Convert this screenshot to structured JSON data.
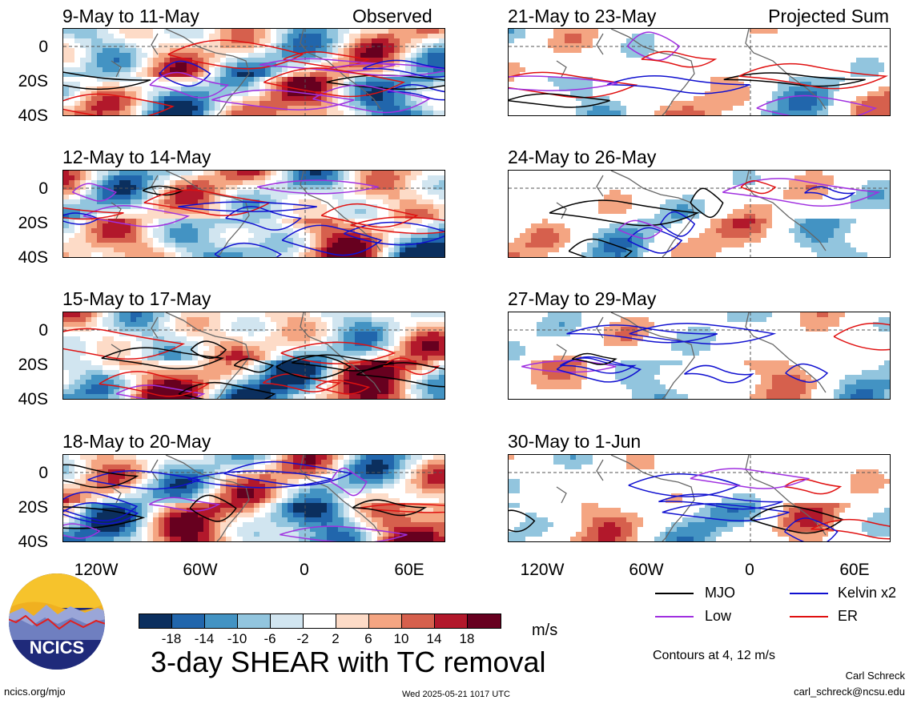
{
  "header": {
    "observed_label": "Observed",
    "projected_label": "Projected Sum"
  },
  "panels_left": [
    {
      "title": "9-May to 11-May"
    },
    {
      "title": "12-May to 14-May"
    },
    {
      "title": "15-May to 17-May"
    },
    {
      "title": "18-May to 20-May"
    }
  ],
  "panels_right": [
    {
      "title": "21-May to 23-May"
    },
    {
      "title": "24-May to 26-May"
    },
    {
      "title": "27-May to 29-May"
    },
    {
      "title": "30-May to 1-Jun"
    }
  ],
  "y_axis_labels": [
    "0",
    "20S",
    "40S"
  ],
  "x_axis_labels": [
    "120W",
    "60W",
    "0",
    "60E"
  ],
  "legend": {
    "mjo": "MJO",
    "kelvin": "Kelvin x2",
    "low": "Low",
    "er": "ER",
    "colors": {
      "mjo": "#000000",
      "kelvin": "#1010d0",
      "low": "#a030e0",
      "er": "#e01010"
    }
  },
  "colorbar": {
    "ticks": [
      "-18",
      "-14",
      "-10",
      "-6",
      "-2",
      "2",
      "6",
      "10",
      "14",
      "18"
    ],
    "colors": [
      "#0b2f5e",
      "#2166ac",
      "#4393c3",
      "#92c5de",
      "#d1e5f0",
      "#ffffff",
      "#fddbc7",
      "#f4a582",
      "#d6604d",
      "#b2182b",
      "#67001f"
    ],
    "units": "m/s"
  },
  "main_title": "3-day SHEAR with TC removal",
  "contours_note": "Contours at 4, 12 m/s",
  "author": "Carl Schreck",
  "email": "carl_schreck@ncsu.edu",
  "site": "ncics.org/mjo",
  "timestamp": "Wed 2025-05-21 1017 UTC",
  "logo_text": "NCICS"
}
